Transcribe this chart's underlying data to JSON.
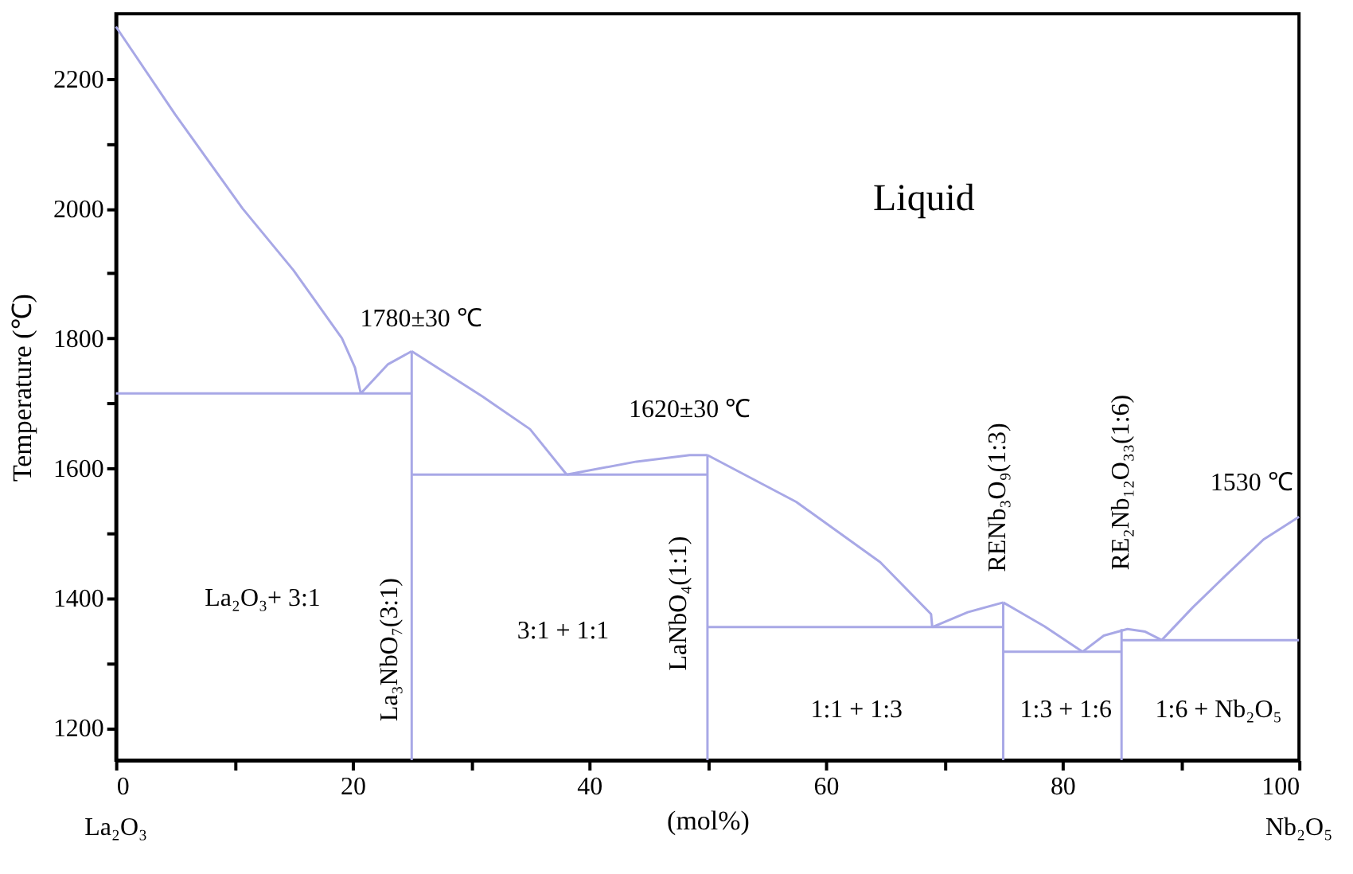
{
  "chart_data": {
    "type": "line",
    "xlabel": "(mol%)",
    "ylabel": "Temperature (℃)",
    "xlim": [
      0,
      100
    ],
    "ylim": [
      1150,
      2300
    ],
    "xticks": [
      0,
      {
        "value": 10,
        "label": null
      },
      20,
      {
        "value": 30,
        "label": null
      },
      40,
      {
        "value": 50,
        "label": null
      },
      60,
      {
        "value": 70,
        "label": null
      },
      80,
      {
        "value": 90,
        "label": null
      },
      100
    ],
    "yticks": [
      1200,
      {
        "value": 1300,
        "label": null
      },
      1400,
      {
        "value": 1500,
        "label": null
      },
      1600,
      {
        "value": 1700,
        "label": null
      },
      1800,
      {
        "value": 1900,
        "label": null
      },
      2000,
      {
        "value": 2100,
        "label": null
      },
      2200
    ],
    "grid": false,
    "marker": "none",
    "line_style": "solid",
    "series": [
      {
        "color": "#a8a8e6",
        "x": [
          0,
          5,
          10.7,
          15,
          19.1,
          20.2,
          20.7
        ],
        "values": [
          2280,
          2145,
          2000,
          1905,
          1800,
          1755,
          1715
        ]
      },
      {
        "color": "#a8a8e6",
        "x": [
          20.7,
          23,
          25
        ],
        "values": [
          1715,
          1760,
          1780
        ]
      },
      {
        "color": "#a8a8e6",
        "x": [
          25,
          31,
          35,
          38.1
        ],
        "values": [
          1780,
          1710,
          1660,
          1590
        ]
      },
      {
        "color": "#a8a8e6",
        "x": [
          38.1,
          44,
          48.5,
          50
        ],
        "values": [
          1590,
          1610,
          1620,
          1620
        ]
      },
      {
        "color": "#a8a8e6",
        "x": [
          50,
          57.5,
          64.6,
          68.9,
          69
        ],
        "values": [
          1620,
          1548,
          1455,
          1375,
          1355
        ]
      },
      {
        "color": "#a8a8e6",
        "x": [
          69,
          72,
          75
        ],
        "values": [
          1355,
          1378,
          1393
        ]
      },
      {
        "color": "#a8a8e6",
        "x": [
          75,
          78.5,
          81.7
        ],
        "values": [
          1393,
          1356,
          1317
        ]
      },
      {
        "color": "#a8a8e6",
        "x": [
          81.7,
          83.5,
          85.5,
          87,
          88.4
        ],
        "values": [
          1317,
          1342,
          1352,
          1348,
          1335
        ]
      },
      {
        "color": "#a8a8e6",
        "x": [
          88.4,
          91,
          93.6,
          97,
          100
        ],
        "values": [
          1335,
          1385,
          1431,
          1490,
          1525
        ]
      },
      {
        "color": "#a8a8e6",
        "x": [
          0,
          25
        ],
        "values": [
          1715,
          1715
        ]
      },
      {
        "color": "#a8a8e6",
        "x": [
          25,
          50
        ],
        "values": [
          1590,
          1590
        ]
      },
      {
        "color": "#a8a8e6",
        "x": [
          50,
          75
        ],
        "values": [
          1355,
          1355
        ]
      },
      {
        "color": "#a8a8e6",
        "x": [
          75,
          85
        ],
        "values": [
          1317,
          1317
        ]
      },
      {
        "color": "#a8a8e6",
        "x": [
          85,
          100
        ],
        "values": [
          1335,
          1335
        ]
      },
      {
        "color": "#a8a8e6",
        "x": [
          25,
          25
        ],
        "values": [
          1780,
          1150
        ]
      },
      {
        "color": "#a8a8e6",
        "x": [
          50,
          50
        ],
        "values": [
          1620,
          1150
        ]
      },
      {
        "color": "#a8a8e6",
        "x": [
          75,
          75
        ],
        "values": [
          1393,
          1150
        ]
      },
      {
        "color": "#a8a8e6",
        "x": [
          85,
          85
        ],
        "values": [
          1352,
          1150
        ]
      }
    ],
    "annotations": [
      "Liquid",
      "1780±30 ℃",
      "1620±30 ℃",
      "1530 ℃",
      "La₂O₃+ 3:1",
      "3:1 + 1:1",
      "1:1 + 1:3",
      "1:3 + 1:6",
      "1:6 + Nb₂O₅",
      "La₃NbO₇(3:1)",
      "LaNbO₄(1:1)",
      "RENb₃O₉(1:3)",
      "RE₂Nb₁₂O₃₃(1:6)",
      "La₂O₃",
      "Nb₂O₅"
    ]
  }
}
